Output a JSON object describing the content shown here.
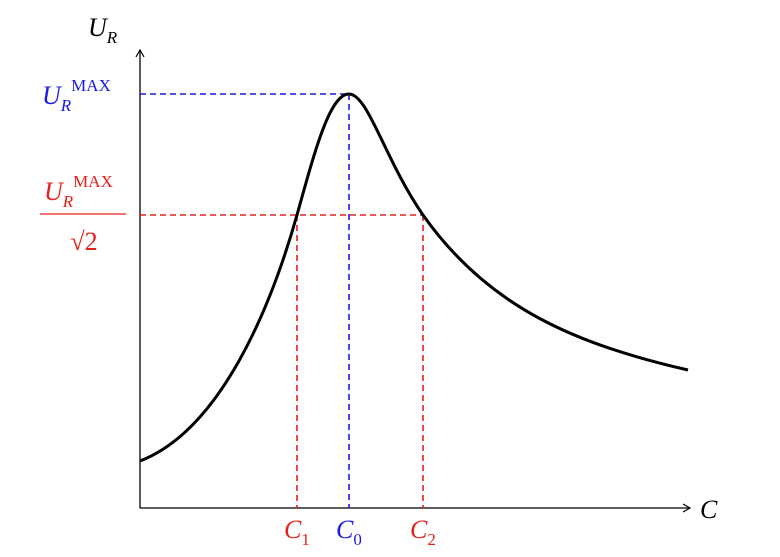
{
  "axes": {
    "y_label": {
      "main": "U",
      "sub": "R"
    },
    "x_label": "C"
  },
  "levels": [
    {
      "main": "U",
      "sub": "R",
      "sup": "MAX"
    },
    {
      "main": "U",
      "sub": "R",
      "sup": "MAX",
      "denominator": "√2"
    }
  ],
  "markers": [
    {
      "main": "C",
      "sub": "1"
    },
    {
      "main": "C",
      "sub": "0"
    },
    {
      "main": "C",
      "sub": "2"
    }
  ]
}
